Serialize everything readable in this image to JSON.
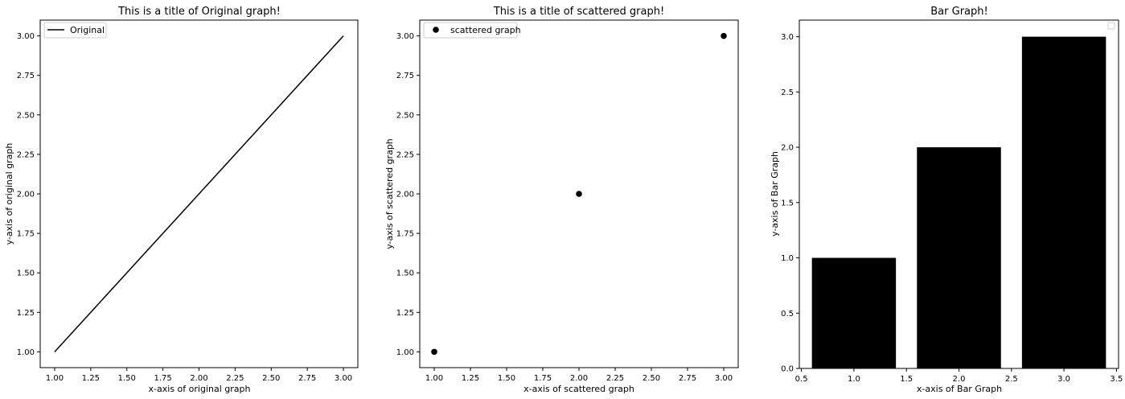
{
  "chart_data": [
    {
      "type": "line",
      "title": "This is a title of Original graph!",
      "xlabel": "x-axis of original graph",
      "ylabel": "y-axis of original graph",
      "x": [
        1,
        2,
        3
      ],
      "series": [
        {
          "name": "Original",
          "values": [
            1,
            2,
            3
          ],
          "color": "#000000"
        }
      ],
      "xlim": [
        0.9,
        3.1
      ],
      "ylim": [
        0.9,
        3.1
      ],
      "xticks": [
        "1.00",
        "1.25",
        "1.50",
        "1.75",
        "2.00",
        "2.25",
        "2.50",
        "2.75",
        "3.00"
      ],
      "yticks": [
        "1.00",
        "1.25",
        "1.50",
        "1.75",
        "2.00",
        "2.25",
        "2.50",
        "2.75",
        "3.00"
      ],
      "grid": false,
      "legend": "upper left"
    },
    {
      "type": "scatter",
      "title": "This is a title of scattered graph!",
      "xlabel": "x-axis of scattered graph",
      "ylabel": "y-axis of scattered graph",
      "x": [
        1,
        2,
        3
      ],
      "series": [
        {
          "name": "scattered graph",
          "values": [
            1,
            2,
            3
          ],
          "color": "#000000"
        }
      ],
      "xlim": [
        0.9,
        3.1
      ],
      "ylim": [
        0.9,
        3.1
      ],
      "xticks": [
        "1.00",
        "1.25",
        "1.50",
        "1.75",
        "2.00",
        "2.25",
        "2.50",
        "2.75",
        "3.00"
      ],
      "yticks": [
        "1.00",
        "1.25",
        "1.50",
        "1.75",
        "2.00",
        "2.25",
        "2.50",
        "2.75",
        "3.00"
      ],
      "grid": false,
      "legend": "upper left"
    },
    {
      "type": "bar",
      "title": "Bar Graph!",
      "xlabel": "x-axis of Bar Graph",
      "ylabel": "y-axis of Bar Graph",
      "x": [
        1,
        2,
        3
      ],
      "series": [
        {
          "values": [
            1,
            2,
            3
          ],
          "color": "#000000"
        }
      ],
      "bar_width": 0.8,
      "xlim": [
        0.48,
        3.52
      ],
      "ylim": [
        0,
        3.15
      ],
      "xticks": [
        "0.5",
        "1.0",
        "1.5",
        "2.0",
        "2.5",
        "3.0",
        "3.5"
      ],
      "yticks": [
        "0.0",
        "0.5",
        "1.0",
        "1.5",
        "2.0",
        "2.5",
        "3.0"
      ],
      "grid": false,
      "legend": "upper right"
    }
  ]
}
